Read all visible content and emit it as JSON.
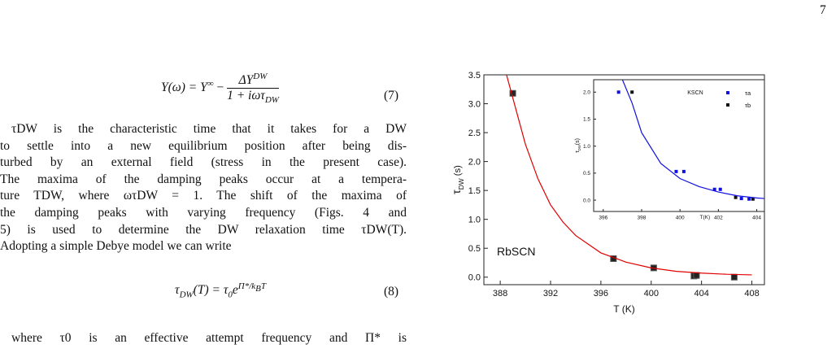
{
  "page_number": "7",
  "equation_7": {
    "lhs": "Y(ω) = Y",
    "lhs_sup": "∞",
    "minus": "−",
    "num": "ΔY",
    "num_sup": "DW",
    "den": "1 + iωτ",
    "den_sub": "DW",
    "number": "(7)"
  },
  "paragraph_1": [
    "τDW is the characteristic time that it takes for a DW",
    "to settle into a new equilibrium position after being dis-",
    "turbed by an external field (stress in the present case).",
    "The maxima of the damping peaks occur at a tempera-",
    "ture TDW, where ωτDW = 1. The shift of the maxima of",
    "the damping peaks with varying frequency (Figs. 4 and",
    "5) is used to determine the DW relaxation time τDW(T).",
    "Adopting a simple Debye model we can write"
  ],
  "equation_8": {
    "lhs": "τ",
    "lhs_sub": "DW",
    "lhs_rest": "(T) = τ",
    "tau_sub": "0",
    "e": "e",
    "exp": "Π*/k",
    "exp_sub": "B",
    "exp_rest": "T",
    "number": "(8)"
  },
  "paragraph_2": [
    "where τ0 is an effective attempt frequency and Π* is"
  ],
  "chart_data": [
    {
      "type": "scatter",
      "xlabel": "T (K)",
      "ylabel": {
        "symbol": "τ",
        "sub": "DW",
        "unit": " (s)"
      },
      "annotation": "RbSCN",
      "xlim": [
        386.7,
        409
      ],
      "ylim": [
        -0.13,
        3.5
      ],
      "xticks": [
        388,
        392,
        396,
        400,
        404,
        408
      ],
      "yticks": [
        {
          "value": 0,
          "label": "0.0"
        },
        {
          "value": 0.5,
          "label": "0.5"
        },
        {
          "value": 1,
          "label": "1.0"
        },
        {
          "value": 1.5,
          "label": "1.5"
        },
        {
          "value": 2,
          "label": "2.0"
        },
        {
          "value": 2.5,
          "label": "2.5"
        },
        {
          "value": 3,
          "label": "3.0"
        },
        {
          "value": 3.5,
          "label": "3.5"
        }
      ],
      "series": [
        {
          "style": "marker",
          "color": "#222222",
          "x": [
            389,
            397,
            400.2,
            403.4,
            403.6,
            406.6
          ],
          "values": [
            3.18,
            0.32,
            0.16,
            0.02,
            0.03,
            0.0
          ]
        },
        {
          "style": "line",
          "color": "#e00000",
          "x": [
            388.5,
            389,
            390,
            391,
            392,
            393,
            394,
            396,
            398,
            400,
            402,
            404,
            406,
            408
          ],
          "values": [
            3.5,
            3.1,
            2.3,
            1.7,
            1.25,
            0.95,
            0.72,
            0.42,
            0.26,
            0.16,
            0.1,
            0.07,
            0.05,
            0.04
          ]
        }
      ]
    },
    {
      "type": "scatter",
      "xlabel": "T(K)",
      "ylabel": {
        "symbol": "τ",
        "sub": "DW",
        "unit": "(s)"
      },
      "legend_title": "KSCN",
      "xlim": [
        395.5,
        404.4
      ],
      "ylim": [
        -0.21,
        2.23
      ],
      "xticks": [
        396,
        398,
        400,
        402,
        404
      ],
      "yticks": [
        {
          "value": 0,
          "label": "0.0"
        },
        {
          "value": 0.5,
          "label": "0.5"
        },
        {
          "value": 1,
          "label": "1.0"
        },
        {
          "value": 1.5,
          "label": "1.5"
        },
        {
          "value": 2,
          "label": "2.0"
        }
      ],
      "series": [
        {
          "name": "τa",
          "style": "marker",
          "color": "#1010e0",
          "x": [
            396.8,
            399.8,
            400.2,
            401.8,
            402.1,
            403.2,
            403.6
          ],
          "values": [
            2.0,
            0.53,
            0.53,
            0.2,
            0.2,
            0.03,
            0.02
          ]
        },
        {
          "name": "τb",
          "style": "marker",
          "color": "#111111",
          "x": [
            397.5,
            402.9,
            403.8
          ],
          "values": [
            2.0,
            0.05,
            0.02
          ]
        },
        {
          "style": "line",
          "color": "#1010e0",
          "x": [
            397,
            397.5,
            398,
            399,
            400,
            401,
            402,
            403,
            404,
            404.4
          ],
          "values": [
            2.23,
            1.8,
            1.25,
            0.68,
            0.4,
            0.25,
            0.15,
            0.08,
            0.04,
            0.03
          ]
        }
      ]
    }
  ]
}
